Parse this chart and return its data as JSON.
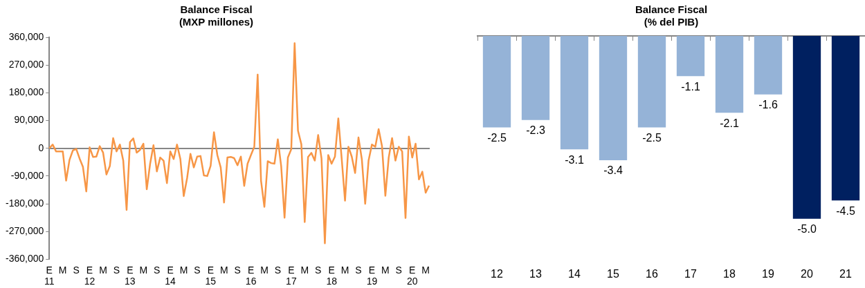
{
  "chart_data": [
    {
      "type": "line",
      "title": "Balance Fiscal\n(MXP millones)",
      "color": "#f79646",
      "marker": "none",
      "categories": [
        "E\n11",
        null,
        null,
        null,
        "M",
        null,
        null,
        null,
        "S",
        null,
        null,
        null,
        "E\n12",
        null,
        null,
        null,
        "M",
        null,
        null,
        null,
        "S",
        null,
        null,
        null,
        "E\n13",
        null,
        null,
        null,
        "M",
        null,
        null,
        null,
        "S",
        null,
        null,
        null,
        "E\n14",
        null,
        null,
        null,
        "M",
        null,
        null,
        null,
        "S",
        null,
        null,
        null,
        "E\n15",
        null,
        null,
        null,
        "M",
        null,
        null,
        null,
        "S",
        null,
        null,
        null,
        "E\n16",
        null,
        null,
        null,
        "M",
        null,
        null,
        null,
        "S",
        null,
        null,
        null,
        "E\n17",
        null,
        null,
        null,
        "M",
        null,
        null,
        null,
        "S",
        null,
        null,
        null,
        "E\n18",
        null,
        null,
        null,
        "M",
        null,
        null,
        null,
        "S",
        null,
        null,
        null,
        "E\n19",
        null,
        null,
        null,
        "M",
        null,
        null,
        null,
        "S",
        null,
        null,
        null,
        "E\n20",
        null,
        null,
        null,
        "M",
        null
      ],
      "values": [
        0,
        12000,
        -10000,
        -10000,
        -10000,
        -105000,
        -38000,
        -7000,
        -2000,
        -33000,
        -60000,
        -140000,
        3000,
        -28000,
        -27000,
        7000,
        -14000,
        -85000,
        -58000,
        33000,
        -10000,
        12000,
        -40000,
        -200000,
        20000,
        32000,
        -14000,
        -5000,
        15000,
        -133000,
        -50000,
        10000,
        -75000,
        -30000,
        -40000,
        -113000,
        -10000,
        -35000,
        12000,
        -35000,
        -155000,
        -97000,
        -18000,
        -62000,
        -27000,
        -25000,
        -88000,
        -90000,
        -57000,
        52000,
        -22000,
        -62000,
        -176000,
        -30000,
        -28000,
        -32000,
        -55000,
        -27000,
        -122000,
        -50000,
        -22000,
        5000,
        239000,
        -105000,
        -190000,
        -42000,
        -48000,
        -50000,
        29000,
        -58000,
        -225000,
        -30000,
        -3000,
        341000,
        57000,
        13000,
        -239000,
        -28000,
        -15000,
        -40000,
        43000,
        -33000,
        -308000,
        -22000,
        -50000,
        -27000,
        97000,
        -33000,
        -170000,
        5000,
        -27000,
        -80000,
        35000,
        -35000,
        -180000,
        -40000,
        12000,
        5000,
        62000,
        7000,
        -154000,
        -30000,
        33000,
        -40000,
        5000,
        -10000,
        -226000,
        38000,
        -30000,
        15000,
        -101000,
        -76000,
        -144000,
        -121000
      ],
      "ylim": [
        -360000,
        360000
      ],
      "yticks": [
        {
          "value": -360000,
          "label": "-360,000"
        },
        {
          "value": -270000,
          "label": "-270,000"
        },
        {
          "value": -180000,
          "label": "-180,000"
        },
        {
          "value": -90000,
          "label": "-90,000"
        },
        {
          "value": 0,
          "label": "0"
        },
        {
          "value": 90000,
          "label": "90,000"
        },
        {
          "value": 180000,
          "label": "180,000"
        },
        {
          "value": 270000,
          "label": "270,000"
        },
        {
          "value": 360000,
          "label": "360,000"
        }
      ]
    },
    {
      "type": "bar",
      "title": "Balance Fiscal\n(% del PIB)",
      "tick_labels": "x",
      "categories": [
        "12",
        "13",
        "14",
        "15",
        "16",
        "17",
        "18",
        "19",
        "20",
        "21"
      ],
      "values": [
        -2.5,
        -2.3,
        -3.1,
        -3.4,
        -2.5,
        -1.1,
        -2.1,
        -1.6,
        -5.0,
        -4.5
      ],
      "colors": [
        "#95b3d7",
        "#95b3d7",
        "#95b3d7",
        "#95b3d7",
        "#95b3d7",
        "#95b3d7",
        "#95b3d7",
        "#95b3d7",
        "#002060",
        "#002060"
      ],
      "value_labels": [
        "-2.5",
        "-2.3",
        "-3.1",
        "-3.4",
        "-2.5",
        "-1.1",
        "-2.1",
        "-1.6",
        "-5.0",
        "-4.5"
      ]
    }
  ]
}
